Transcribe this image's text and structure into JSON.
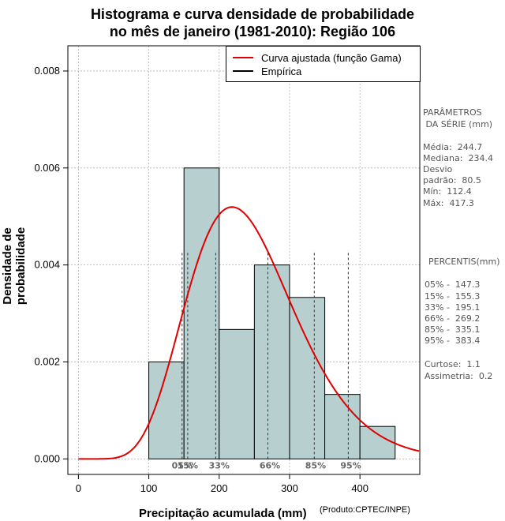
{
  "colors": {
    "curve": "#e00000",
    "bars": "#b7cfcf",
    "empirical": "#000000",
    "grid": "#b0b0b0"
  },
  "chart_data": {
    "type": "bar",
    "title_line1": "Histograma e curva densidade de probabilidade",
    "title_line2": "no mês de janeiro (1981-2010): Região 106",
    "xlabel": "Precipitação acumulada (mm)",
    "ylabel": "Densidade de probabilidade",
    "credit": "(Produto:CPTEC/INPE)",
    "xlim": [
      -15,
      485
    ],
    "ylim": [
      -0.00032,
      0.00852
    ],
    "x_ticks": [
      0,
      100,
      200,
      300,
      400
    ],
    "y_ticks": [
      0.0,
      0.002,
      0.004,
      0.006,
      0.008
    ],
    "y_tick_labels": [
      "0.000",
      "0.002",
      "0.004",
      "0.006",
      "0.008"
    ],
    "bins": [
      {
        "x0": 100,
        "x1": 150,
        "density": 0.002
      },
      {
        "x0": 150,
        "x1": 200,
        "density": 0.006
      },
      {
        "x0": 200,
        "x1": 250,
        "density": 0.00267
      },
      {
        "x0": 250,
        "x1": 300,
        "density": 0.004
      },
      {
        "x0": 300,
        "x1": 350,
        "density": 0.00333
      },
      {
        "x0": 350,
        "x1": 400,
        "density": 0.00133
      },
      {
        "x0": 400,
        "x1": 450,
        "density": 0.00067
      }
    ],
    "gamma_fit": {
      "mean": 244.7,
      "sd": 80.5
    },
    "percentile_lines": [
      {
        "label": "05%",
        "value": 147.3
      },
      {
        "label": "15%",
        "value": 155.3
      },
      {
        "label": "33%",
        "value": 195.1
      },
      {
        "label": "66%",
        "value": 269.2
      },
      {
        "label": "85%",
        "value": 335.1
      },
      {
        "label": "95%",
        "value": 383.4
      }
    ],
    "percentile_markers": [
      {
        "text": "05%",
        "x": 147.3
      },
      {
        "text": "15%",
        "x": 155.3
      },
      {
        "text": "33%",
        "x": 200.0
      },
      {
        "text": "66%",
        "x": 272.0
      },
      {
        "text": "85%",
        "x": 337.0
      },
      {
        "text": "95%",
        "x": 387.0
      }
    ],
    "legend": {
      "fit_label": "Curva ajustada (função Gama)",
      "empirical_label": "Empírica"
    }
  },
  "stats": {
    "params_title_1": "PARÂMETROS",
    "params_title_2": " DA SÉRIE (mm)",
    "media": "Média:  244.7",
    "mediana": "Mediana:  234.4",
    "desvio_1": "Desvio",
    "desvio_2": "padrão:  80.5",
    "min": "Mín:  112.4",
    "max": "Máx:  417.3",
    "percentis_title": "PERCENTIS(mm)",
    "p05": "05% -  147.3",
    "p15": "15% -  155.3",
    "p33": "33% -  195.1",
    "p66": "66% -  269.2",
    "p85": "85% -  335.1",
    "p95": "95% -  383.4",
    "curtose": "Curtose:  1.1",
    "assimetria": "Assimetria:  0.2"
  }
}
